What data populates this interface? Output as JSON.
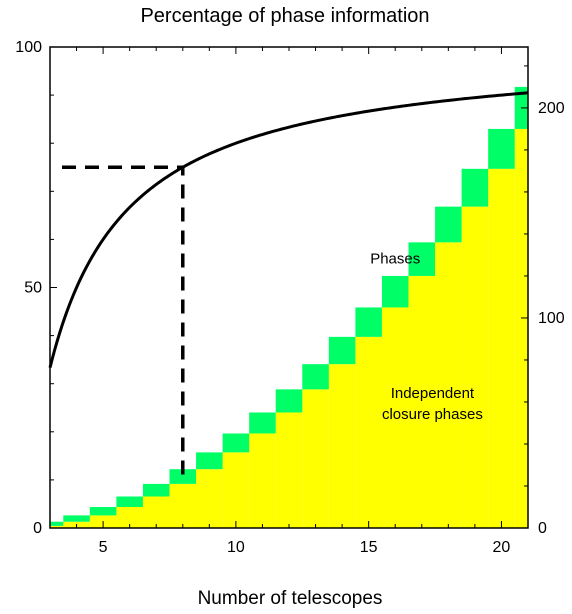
{
  "chart_data": {
    "type": "bar",
    "title": "Percentage of phase information",
    "xlabel": "Number of telescopes",
    "ylabel_left": "",
    "ylabel_right": "",
    "xlim": [
      3,
      21
    ],
    "ylim_left": [
      0,
      100
    ],
    "ylim_right": [
      0,
      229
    ],
    "x_ticks": [
      5,
      10,
      15,
      20
    ],
    "y_ticks_left": [
      0,
      50,
      100
    ],
    "y_ticks_right": [
      0,
      100,
      200
    ],
    "grid": false,
    "telescopes": [
      3,
      4,
      5,
      6,
      7,
      8,
      9,
      10,
      11,
      12,
      13,
      14,
      15,
      16,
      17,
      18,
      19,
      20,
      21
    ],
    "series": [
      {
        "name": "Phases",
        "axis": "right",
        "color": "#00ff66",
        "values": [
          3,
          6,
          10,
          15,
          21,
          28,
          36,
          45,
          55,
          66,
          78,
          91,
          105,
          120,
          136,
          153,
          171,
          190,
          210
        ]
      },
      {
        "name": "Independent closure phases",
        "axis": "right",
        "color": "#ffff00",
        "values": [
          1,
          3,
          6,
          10,
          15,
          21,
          28,
          36,
          45,
          55,
          66,
          78,
          91,
          105,
          120,
          136,
          153,
          171,
          190
        ]
      },
      {
        "name": "",
        "type": "line",
        "axis": "left",
        "color": "#000000",
        "x": [
          3,
          4,
          5,
          6,
          7,
          8,
          9,
          10,
          11,
          12,
          13,
          14,
          15,
          16,
          17,
          18,
          19,
          20,
          21
        ],
        "values": [
          33.3,
          50,
          60,
          66.7,
          71.4,
          75,
          77.8,
          80,
          81.8,
          83.3,
          84.6,
          85.7,
          86.7,
          87.5,
          88.2,
          88.9,
          89.5,
          90,
          90.5
        ]
      }
    ],
    "reference_lines": [
      {
        "style": "dashed",
        "x": 8,
        "y": 75,
        "axis": "left"
      }
    ],
    "annotations": [
      {
        "text": "Phases",
        "x": 16,
        "y_right": 126
      },
      {
        "text": "Independent",
        "x": 17.4,
        "y_right": 62
      },
      {
        "text": "closure phases",
        "x": 17.4,
        "y_right": 52
      }
    ]
  }
}
